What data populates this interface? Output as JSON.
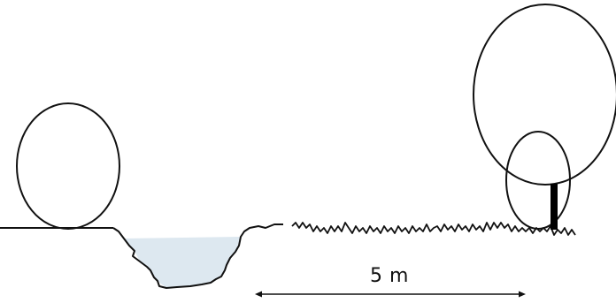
{
  "diagram": {
    "distance_label": "5 m",
    "colors": {
      "line": "#111111",
      "water": "#dde8f0",
      "trunk": "#000000",
      "background": "#ffffff"
    }
  }
}
